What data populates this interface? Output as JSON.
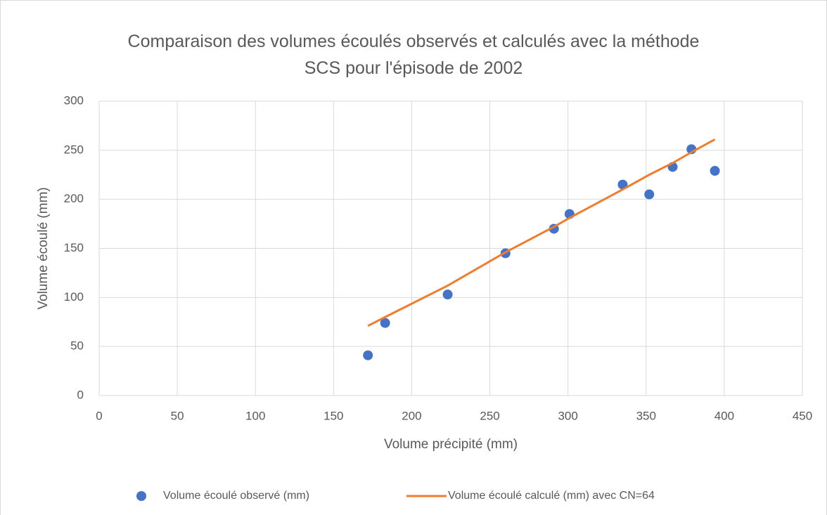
{
  "chart_data": {
    "type": "scatter",
    "title": "Comparaison des volumes écoulés observés et calculés avec la méthode SCS pour l'épisode de 2002",
    "x_label": "Volume précipité (mm)",
    "y_label": "Volume écoulé (mm)",
    "x": [
      172,
      183,
      223,
      260,
      291,
      301,
      335,
      352,
      367,
      379,
      394
    ],
    "series": [
      {
        "name": "Volume écoulé observé (mm)",
        "color": "#4472c4",
        "mode": "markers",
        "values": [
          41,
          74,
          103,
          145,
          170,
          185,
          215,
          205,
          233,
          251,
          229
        ]
      },
      {
        "name": "Volume écoulé calculé (mm) avec CN=64",
        "color": "#ed7d31",
        "mode": "lines",
        "values": [
          71,
          80,
          112,
          146,
          172,
          181,
          210,
          225,
          237,
          248,
          261
        ]
      }
    ],
    "xlim": [
      0,
      450
    ],
    "xticks": [
      0,
      50,
      100,
      150,
      200,
      250,
      300,
      350,
      400,
      450
    ],
    "ylim": [
      0,
      300
    ],
    "yticks": [
      0,
      50,
      100,
      150,
      200,
      250,
      300
    ],
    "grid": true,
    "legend": "bottom"
  }
}
